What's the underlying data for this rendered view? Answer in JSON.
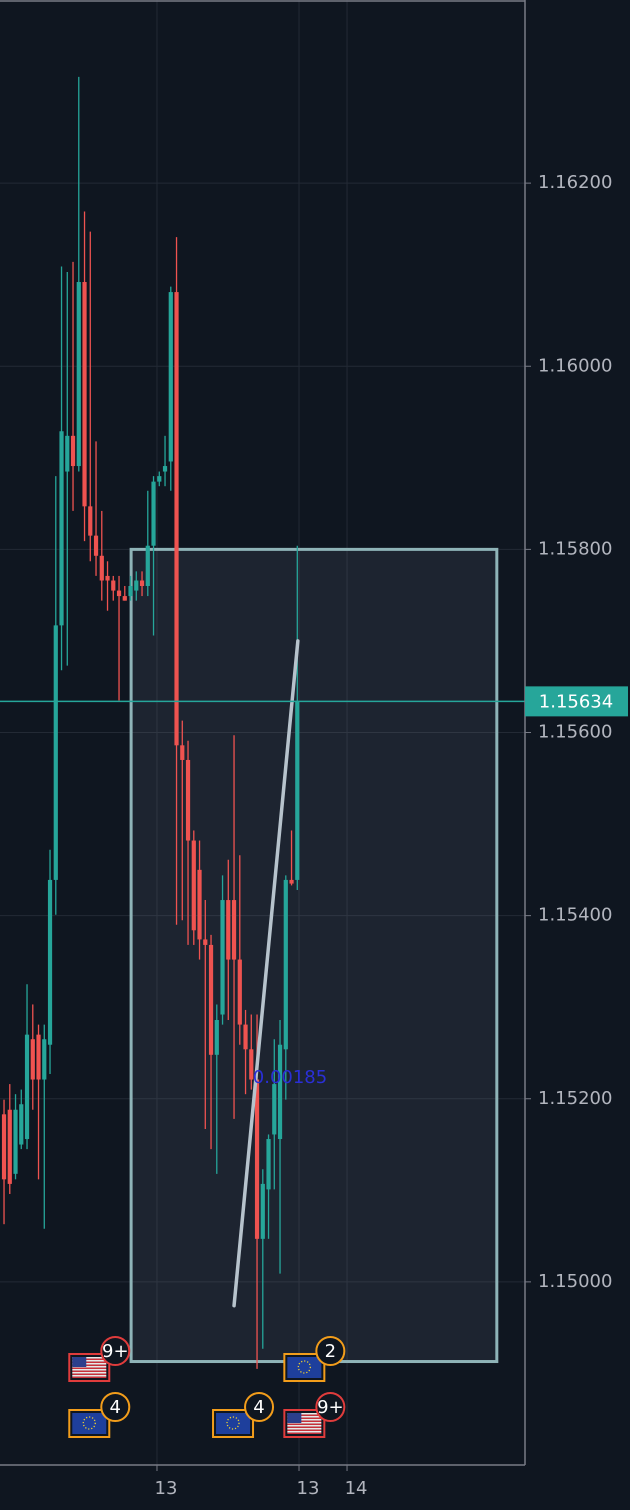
{
  "chart_data": {
    "type": "candlestick",
    "up_color": "#26a69a",
    "down_color": "#ef5350",
    "grid": true,
    "xlim": [
      -0.7,
      90.6
    ],
    "xticks": [
      {
        "value": 26.6,
        "label": "13"
      },
      {
        "value": 51.3,
        "label": "13"
      },
      {
        "value": 59.65,
        "label": "14"
      }
    ],
    "ylim": [
      1.148,
      1.164
    ],
    "yticks": [
      {
        "value": 1.15,
        "label": "1.15000"
      },
      {
        "value": 1.152,
        "label": "1.15200"
      },
      {
        "value": 1.154,
        "label": "1.15400"
      },
      {
        "value": 1.156,
        "label": "1.15600"
      },
      {
        "value": 1.158,
        "label": "1.15800"
      },
      {
        "value": 1.16,
        "label": "1.16000"
      },
      {
        "value": 1.162,
        "label": "1.16200"
      }
    ],
    "open": [
      1.15183,
      1.15188,
      1.15118,
      1.1515,
      1.15156,
      1.15265,
      1.1527,
      1.15221,
      1.15259,
      1.15439,
      1.15717,
      1.15885,
      1.15924,
      1.15891,
      1.16092,
      1.15847,
      1.15815,
      1.15793,
      1.15771,
      1.15766,
      1.15755,
      1.15749,
      1.15749,
      1.15755,
      1.15766,
      1.1576,
      1.15804,
      1.15874,
      1.15885,
      1.15896,
      1.16081,
      1.15586,
      1.1557,
      1.15482,
      1.1545,
      1.15374,
      1.15368,
      1.15248,
      1.15292,
      1.15417,
      1.15417,
      1.15352,
      1.15281,
      1.15254,
      1.15221,
      1.15047,
      1.15101,
      1.15161,
      1.15156,
      1.15254,
      1.15439,
      1.15439
    ],
    "high": [
      1.15199,
      1.15216,
      1.15205,
      1.1521,
      1.15325,
      1.15303,
      1.15281,
      1.15281,
      1.15472,
      1.1588,
      1.16109,
      1.16103,
      1.16114,
      1.16316,
      1.16169,
      1.16147,
      1.15918,
      1.15842,
      1.15787,
      1.15771,
      1.15771,
      1.1576,
      1.15771,
      1.15776,
      1.15776,
      1.15864,
      1.1588,
      1.15885,
      1.15924,
      1.16087,
      1.16141,
      1.15613,
      1.15591,
      1.15493,
      1.15482,
      1.15417,
      1.15379,
      1.15303,
      1.15444,
      1.15461,
      1.15597,
      1.15466,
      1.15297,
      1.15292,
      1.15292,
      1.15123,
      1.15161,
      1.15265,
      1.15286,
      1.15444,
      1.15493,
      1.15804
    ],
    "low": [
      1.15063,
      1.15096,
      1.15112,
      1.15145,
      1.15145,
      1.15188,
      1.15112,
      1.15058,
      1.15227,
      1.15401,
      1.15668,
      1.15673,
      1.15842,
      1.15885,
      1.15809,
      1.15787,
      1.15771,
      1.15744,
      1.15733,
      1.15744,
      1.15635,
      1.15744,
      1.15744,
      1.15744,
      1.15749,
      1.15749,
      1.15706,
      1.15869,
      1.15869,
      1.15864,
      1.1539,
      1.15395,
      1.15368,
      1.15368,
      1.15352,
      1.15167,
      1.15145,
      1.15118,
      1.15281,
      1.15286,
      1.15178,
      1.15259,
      1.15205,
      1.1521,
      1.14905,
      1.14927,
      1.15047,
      1.15101,
      1.15009,
      1.15199,
      1.15433,
      1.15428
    ],
    "close": [
      1.15112,
      1.15107,
      1.15188,
      1.15194,
      1.1527,
      1.15221,
      1.15221,
      1.15265,
      1.15439,
      1.15717,
      1.15929,
      1.15924,
      1.15891,
      1.16092,
      1.15847,
      1.15815,
      1.15793,
      1.15766,
      1.15766,
      1.15755,
      1.15749,
      1.15744,
      1.1576,
      1.15766,
      1.1576,
      1.15804,
      1.15874,
      1.1588,
      1.15891,
      1.16081,
      1.15586,
      1.1557,
      1.15482,
      1.15384,
      1.15374,
      1.15368,
      1.15248,
      1.15286,
      1.15417,
      1.15352,
      1.15352,
      1.15281,
      1.15254,
      1.15221,
      1.15047,
      1.15107,
      1.15156,
      1.15216,
      1.15259,
      1.15439,
      1.15435,
      1.15634
    ],
    "last_price": 1.15634,
    "last_price_color": "#26a69a",
    "range_box": {
      "x": [
        22.1,
        85.7
      ],
      "y": [
        1.14913,
        1.158
      ]
    },
    "trend_line": {
      "x": [
        40,
        51.1
      ],
      "y": [
        1.14974,
        1.157
      ]
    },
    "measure_label": 0.00185,
    "events": [
      {
        "x": 15,
        "flag": "us",
        "count": "9+"
      },
      {
        "x": 15,
        "flag": "eu",
        "count": "4"
      },
      {
        "x": 40,
        "flag": "eu",
        "count": "4"
      },
      {
        "x": 52.4,
        "flag": "eu",
        "count": "2"
      },
      {
        "x": 52.4,
        "flag": "us",
        "count": "9+"
      }
    ]
  }
}
